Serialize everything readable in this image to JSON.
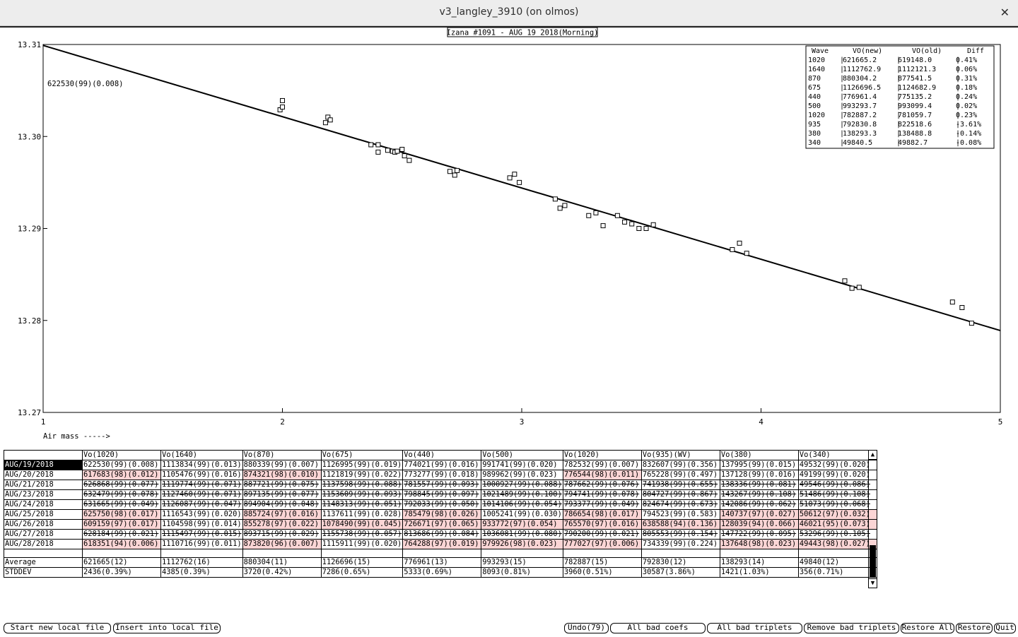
{
  "window": {
    "title": "v3_langley_3910 (on olmos)",
    "close_glyph": "✕"
  },
  "plot": {
    "title": "Izana #1091 - AUG 19 2018(Morning)",
    "annotation": "622530(99)(0.008)",
    "xlabel": "Air mass ----->"
  },
  "chart_data": {
    "type": "scatter",
    "xlim": [
      1,
      5
    ],
    "ylim": [
      13.27,
      13.31
    ],
    "x_ticks": [
      "1",
      "2",
      "3",
      "4",
      "5"
    ],
    "y_ticks": [
      "13.27",
      "13.28",
      "13.29",
      "13.30",
      "13.31"
    ],
    "fit_line": [
      [
        1,
        13.3099
      ],
      [
        5,
        13.2789
      ]
    ],
    "points": [
      [
        1.99,
        13.3029
      ],
      [
        2.0,
        13.3039
      ],
      [
        2.0,
        13.3032
      ],
      [
        2.18,
        13.3015
      ],
      [
        2.19,
        13.3021
      ],
      [
        2.2,
        13.3018
      ],
      [
        2.37,
        13.2991
      ],
      [
        2.4,
        13.2991
      ],
      [
        2.4,
        13.2983
      ],
      [
        2.44,
        13.2985
      ],
      [
        2.46,
        13.2984
      ],
      [
        2.47,
        13.2983
      ],
      [
        2.48,
        13.2984
      ],
      [
        2.5,
        13.2986
      ],
      [
        2.51,
        13.2979
      ],
      [
        2.53,
        13.2974
      ],
      [
        2.7,
        13.2962
      ],
      [
        2.72,
        13.2958
      ],
      [
        2.73,
        13.2963
      ],
      [
        2.95,
        13.2955
      ],
      [
        2.97,
        13.2959
      ],
      [
        2.99,
        13.295
      ],
      [
        3.14,
        13.2932
      ],
      [
        3.16,
        13.2922
      ],
      [
        3.18,
        13.2925
      ],
      [
        3.28,
        13.2914
      ],
      [
        3.31,
        13.2917
      ],
      [
        3.34,
        13.2903
      ],
      [
        3.4,
        13.2914
      ],
      [
        3.43,
        13.2907
      ],
      [
        3.46,
        13.2905
      ],
      [
        3.49,
        13.29
      ],
      [
        3.52,
        13.29
      ],
      [
        3.55,
        13.2904
      ],
      [
        3.88,
        13.2877
      ],
      [
        3.91,
        13.2884
      ],
      [
        3.94,
        13.2873
      ],
      [
        4.35,
        13.2843
      ],
      [
        4.38,
        13.2835
      ],
      [
        4.41,
        13.2836
      ],
      [
        4.8,
        13.282
      ],
      [
        4.84,
        13.2814
      ],
      [
        4.88,
        13.2797
      ]
    ]
  },
  "legend": {
    "headers": [
      "Wave",
      "VO(new)",
      "VO(old)",
      "Diff"
    ],
    "rows": [
      [
        "1020",
        "621665.2",
        "619148.0",
        "0.41%"
      ],
      [
        "1640",
        "1112762.9",
        "1112121.3",
        "0.06%"
      ],
      [
        "870",
        "880304.2",
        "877541.5",
        "0.31%"
      ],
      [
        "675",
        "1126696.5",
        "1124682.9",
        "0.18%"
      ],
      [
        "440",
        "776961.4",
        "775135.2",
        "0.24%"
      ],
      [
        "500",
        "993293.7",
        "993099.4",
        "0.02%"
      ],
      [
        "1020",
        "782887.2",
        "781059.7",
        "0.23%"
      ],
      [
        "935",
        "792830.8",
        "822518.6",
        "-3.61%"
      ],
      [
        "380",
        "138293.3",
        "138488.8",
        "-0.14%"
      ],
      [
        "340",
        "49840.5",
        "49882.7",
        "-0.08%"
      ]
    ]
  },
  "table": {
    "headers": [
      "Vo(1020)",
      "Vo(1640)",
      "Vo(870)",
      "Vo(675)",
      "Vo(440)",
      "Vo(500)",
      "Vo(1020)",
      "Vo(935)(WV)",
      "Vo(380)",
      "Vo(340)"
    ],
    "rows": [
      {
        "date": "AUG/19/2018",
        "selected": true,
        "struck": false,
        "cells": [
          "622530(99)(0.008)",
          "1113834(99)(0.013)",
          "880339(99)(0.007)",
          "1126995(99)(0.019)",
          "774021(99)(0.016)",
          "991741(99)(0.020)",
          "782532(99)(0.007)",
          "832607(99)(0.356)",
          "137995(99)(0.015)",
          "49532(99)(0.020)"
        ],
        "bad": []
      },
      {
        "date": "AUG/20/2018",
        "selected": false,
        "struck": false,
        "cells": [
          "617683(98)(0.012)",
          "1105476(99)(0.016)",
          "874321(98)(0.010)",
          "1121819(99)(0.022)",
          "773277(99)(0.018)",
          "989962(99)(0.023)",
          "776544(98)(0.011)",
          "765228(99)(0.497)",
          "137128(99)(0.016)",
          "49199(99)(0.020)"
        ],
        "bad": [
          0,
          2,
          6
        ]
      },
      {
        "date": "AUG/21/2018",
        "selected": false,
        "struck": true,
        "cells": [
          "626868(99)(0.077)",
          "1119774(99)(0.071)",
          "887721(99)(0.075)",
          "1137598(99)(0.088)",
          "781557(99)(0.093)",
          "1000927(99)(0.088)",
          "787662(99)(0.076)",
          "741938(99)(0.655)",
          "138336(99)(0.081)",
          "49546(99)(0.086)"
        ],
        "bad": []
      },
      {
        "date": "AUG/23/2018",
        "selected": false,
        "struck": true,
        "cells": [
          "632479(99)(0.078)",
          "1127460(99)(0.071)",
          "897135(99)(0.077)",
          "1153609(99)(0.093)",
          "798845(99)(0.097)",
          "1021489(99)(0.100)",
          "794741(99)(0.078)",
          "804727(99)(0.867)",
          "143267(99)(0.108)",
          "51486(99)(0.108)"
        ],
        "bad": []
      },
      {
        "date": "AUG/24/2018",
        "selected": false,
        "struck": true,
        "cells": [
          "631665(99)(0.049)",
          "1126087(99)(0.047)",
          "894904(99)(0.048)",
          "1148313(99)(0.051)",
          "792033(99)(0.050)",
          "1014106(99)(0.054)",
          "793377(99)(0.049)",
          "824674(99)(0.673)",
          "142086(99)(0.062)",
          "51073(99)(0.068)"
        ],
        "bad": []
      },
      {
        "date": "AUG/25/2018",
        "selected": false,
        "struck": false,
        "cells": [
          "625750(98)(0.017)",
          "1116543(99)(0.020)",
          "885724(97)(0.016)",
          "1137611(99)(0.028)",
          "785479(98)(0.026)",
          "1005241(99)(0.030)",
          "786654(98)(0.017)",
          "794523(99)(0.583)",
          "140737(97)(0.027)",
          "50612(97)(0.032)"
        ],
        "bad": [
          0,
          2,
          4,
          6,
          8,
          9
        ]
      },
      {
        "date": "AUG/26/2018",
        "selected": false,
        "struck": false,
        "cells": [
          "609159(97)(0.017)",
          "1104598(99)(0.014)",
          "855278(97)(0.022)",
          "1078490(99)(0.045)",
          "726671(97)(0.065)",
          "933772(97)(0.054)",
          "765570(97)(0.016)",
          "638588(94)(0.136)",
          "128039(94)(0.066)",
          "46021(95)(0.073)"
        ],
        "bad": [
          0,
          2,
          3,
          4,
          5,
          6,
          7,
          8,
          9
        ]
      },
      {
        "date": "AUG/27/2018",
        "selected": false,
        "struck": true,
        "cells": [
          "628184(99)(0.021)",
          "1115497(99)(0.015)",
          "893715(99)(0.029)",
          "1155738(99)(0.057)",
          "813686(99)(0.084)",
          "1036081(99)(0.080)",
          "790200(99)(0.021)",
          "805553(99)(0.154)",
          "147722(99)(0.095)",
          "53296(99)(0.105)"
        ],
        "bad": []
      },
      {
        "date": "AUG/28/2018",
        "selected": false,
        "struck": false,
        "cells": [
          "618351(94)(0.006)",
          "1110716(99)(0.011)",
          "873820(96)(0.007)",
          "1115911(99)(0.020)",
          "764288(97)(0.019)",
          "979926(98)(0.023)",
          "777027(97)(0.006)",
          "734339(99)(0.224)",
          "137648(98)(0.023)",
          "49443(98)(0.027)"
        ],
        "bad": [
          0,
          2,
          4,
          5,
          6,
          8,
          9
        ]
      }
    ],
    "average": {
      "label": "Average",
      "cells": [
        "621665(12)",
        "1112762(16)",
        "880304(11)",
        "1126696(15)",
        "776961(13)",
        "993293(15)",
        "782887(15)",
        "792830(12)",
        "138293(14)",
        "49840(12)"
      ]
    },
    "stddev": {
      "label": "STDDEV",
      "cells": [
        "2436(0.39%)",
        "4385(0.39%)",
        "3720(0.42%)",
        "7286(0.65%)",
        "5333(0.69%)",
        "8093(0.81%)",
        "3960(0.51%)",
        "30587(3.86%)",
        "1421(1.03%)",
        " 356(0.71%)"
      ]
    }
  },
  "buttons": {
    "start_new": "Start new local file",
    "insert": "Insert into local file",
    "undo": "Undo(79)",
    "bad_coefs": "All bad coefs",
    "bad_triplets": "All bad triplets",
    "remove_bad": "Remove bad triplets",
    "restore_all": "Restore All",
    "restore": "Restore",
    "quit": "Quit"
  },
  "colors": {
    "bad_cell": "#fbd5d5",
    "selected_cell": "#000000",
    "plot_line": "#000000"
  }
}
